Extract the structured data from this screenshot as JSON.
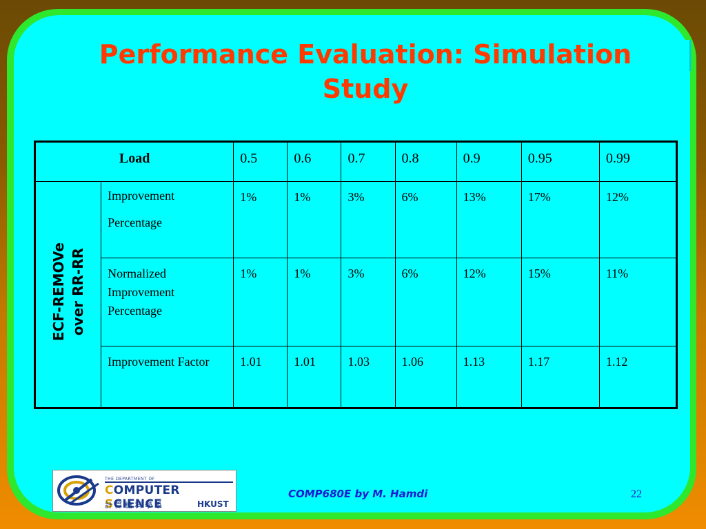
{
  "title": "Performance Evaluation: Simulation Study",
  "table": {
    "header_label": "Load",
    "loads": [
      "0.5",
      "0.6",
      "0.7",
      "0.8",
      "0.9",
      "0.95",
      "0.99"
    ],
    "group_label_line1": "ECF-REMOVe",
    "group_label_line2": "over RR-RR",
    "rows": [
      {
        "metric_line1": "Improvement",
        "metric_line2": "Percentage",
        "values": [
          "1%",
          "1%",
          "3%",
          "6%",
          "13%",
          "17%",
          "12%"
        ]
      },
      {
        "metric_line1": "Normalized Improvement Percentage",
        "values": [
          "1%",
          "1%",
          "3%",
          "6%",
          "12%",
          "15%",
          "11%"
        ]
      },
      {
        "metric_line1": "Improvement Factor",
        "values": [
          "1.01",
          "1.01",
          "1.03",
          "1.06",
          "1.13",
          "1.17",
          "1.12"
        ]
      }
    ]
  },
  "logo": {
    "dept_line": "THE DEPARTMENT OF",
    "name_first_initial": "C",
    "name_first_rest": "OMPUTER ",
    "name_second_initial": "S",
    "name_second_rest": "CIENCE",
    "chinese": "計 算 機 科 學 系",
    "university": "HKUST"
  },
  "footer": "COMP680E by M. Hamdi",
  "page_number": "22",
  "colors": {
    "background": "#f08c00",
    "border": "#2ee82e",
    "panel": "#00ffff",
    "title": "#ff3a00",
    "footer": "#1a1ad0"
  }
}
